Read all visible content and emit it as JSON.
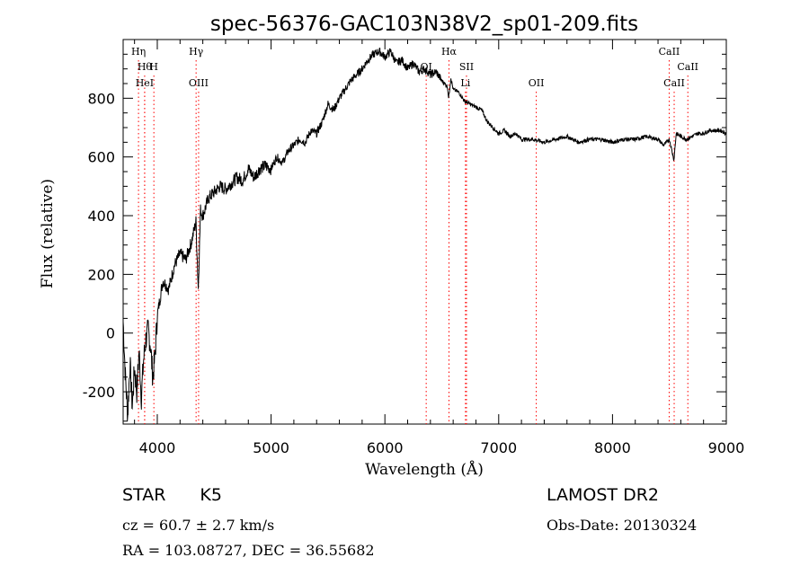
{
  "chart_data": {
    "type": "line",
    "title": "spec-56376-GAC103N38V2_sp01-209.fits",
    "xlabel": "Wavelength (Å)",
    "ylabel": "Flux (relative)",
    "xlim": [
      3700,
      9000
    ],
    "ylim": [
      -310,
      1000
    ],
    "xticks": [
      4000,
      5000,
      6000,
      7000,
      8000,
      9000
    ],
    "yticks": [
      -200,
      0,
      200,
      400,
      600,
      800
    ],
    "x_minor_step": 200,
    "y_minor_step": 50,
    "grid": false,
    "series": [
      {
        "x": [
          3700,
          3720,
          3740,
          3760,
          3780,
          3800,
          3820,
          3840,
          3860,
          3880,
          3900,
          3920,
          3940,
          3960,
          3980,
          4000,
          4050,
          4100,
          4150,
          4200,
          4250,
          4300,
          4340,
          4360,
          4380,
          4400,
          4450,
          4500,
          4550,
          4600,
          4650,
          4700,
          4750,
          4800,
          4850,
          4900,
          4950,
          5000,
          5050,
          5100,
          5150,
          5200,
          5250,
          5300,
          5350,
          5400,
          5450,
          5500,
          5550,
          5600,
          5650,
          5700,
          5750,
          5800,
          5850,
          5900,
          5950,
          6000,
          6050,
          6100,
          6150,
          6200,
          6250,
          6300,
          6350,
          6400,
          6450,
          6500,
          6550,
          6560,
          6580,
          6600,
          6650,
          6700,
          6750,
          6800,
          6850,
          6900,
          6950,
          7000,
          7050,
          7100,
          7150,
          7200,
          7300,
          7400,
          7500,
          7600,
          7700,
          7800,
          7900,
          8000,
          8100,
          8200,
          8300,
          8400,
          8450,
          8500,
          8540,
          8560,
          8600,
          8650,
          8700,
          8750,
          8800,
          8850,
          8900,
          8950,
          9000
        ],
        "y": [
          40,
          -150,
          -280,
          -100,
          -250,
          -120,
          -200,
          -60,
          -220,
          -90,
          -20,
          10,
          -40,
          -150,
          -80,
          60,
          180,
          150,
          230,
          270,
          250,
          310,
          380,
          150,
          420,
          400,
          460,
          480,
          500,
          490,
          510,
          530,
          520,
          560,
          530,
          560,
          570,
          560,
          600,
          580,
          620,
          640,
          660,
          650,
          690,
          680,
          720,
          780,
          760,
          800,
          830,
          860,
          880,
          900,
          930,
          950,
          960,
          940,
          960,
          920,
          930,
          900,
          920,
          890,
          900,
          880,
          890,
          860,
          840,
          800,
          870,
          830,
          820,
          790,
          780,
          770,
          760,
          720,
          700,
          680,
          690,
          670,
          680,
          660,
          660,
          650,
          660,
          670,
          650,
          660,
          660,
          650,
          660,
          660,
          670,
          660,
          640,
          660,
          590,
          680,
          670,
          660,
          670,
          680,
          680,
          690,
          690,
          690,
          680
        ]
      }
    ],
    "lines": [
      {
        "x": 3835,
        "label": "Hη",
        "row": 1
      },
      {
        "x": 3889,
        "label": "Hθ",
        "row": 2
      },
      {
        "x": 3970,
        "label": "H",
        "row": 2
      },
      {
        "x": 3889,
        "label": "HeI",
        "row": 3
      },
      {
        "x": 4341,
        "label": "Hγ",
        "row": 1
      },
      {
        "x": 4363,
        "label": "OIII",
        "row": 3
      },
      {
        "x": 6363,
        "label": "OI",
        "row": 2
      },
      {
        "x": 6563,
        "label": "Hα",
        "row": 1
      },
      {
        "x": 6717,
        "label": "SII",
        "row": 2
      },
      {
        "x": 6708,
        "label": "Li",
        "row": 3
      },
      {
        "x": 7330,
        "label": "OII",
        "row": 3
      },
      {
        "x": 8498,
        "label": "CaII",
        "row": 1
      },
      {
        "x": 8662,
        "label": "CaII",
        "row": 2
      },
      {
        "x": 8542,
        "label": "CaII",
        "row": 3
      }
    ],
    "line_color": "#000000",
    "marker_color": "#ff0000"
  },
  "info": {
    "object_type": "STAR",
    "subclass": "K5",
    "cz": "cz = 60.7 ± 2.7 km/s",
    "radec": "RA = 103.08727, DEC =  36.55682",
    "survey": "LAMOST DR2",
    "obs_date": "Obs-Date: 20130324"
  }
}
